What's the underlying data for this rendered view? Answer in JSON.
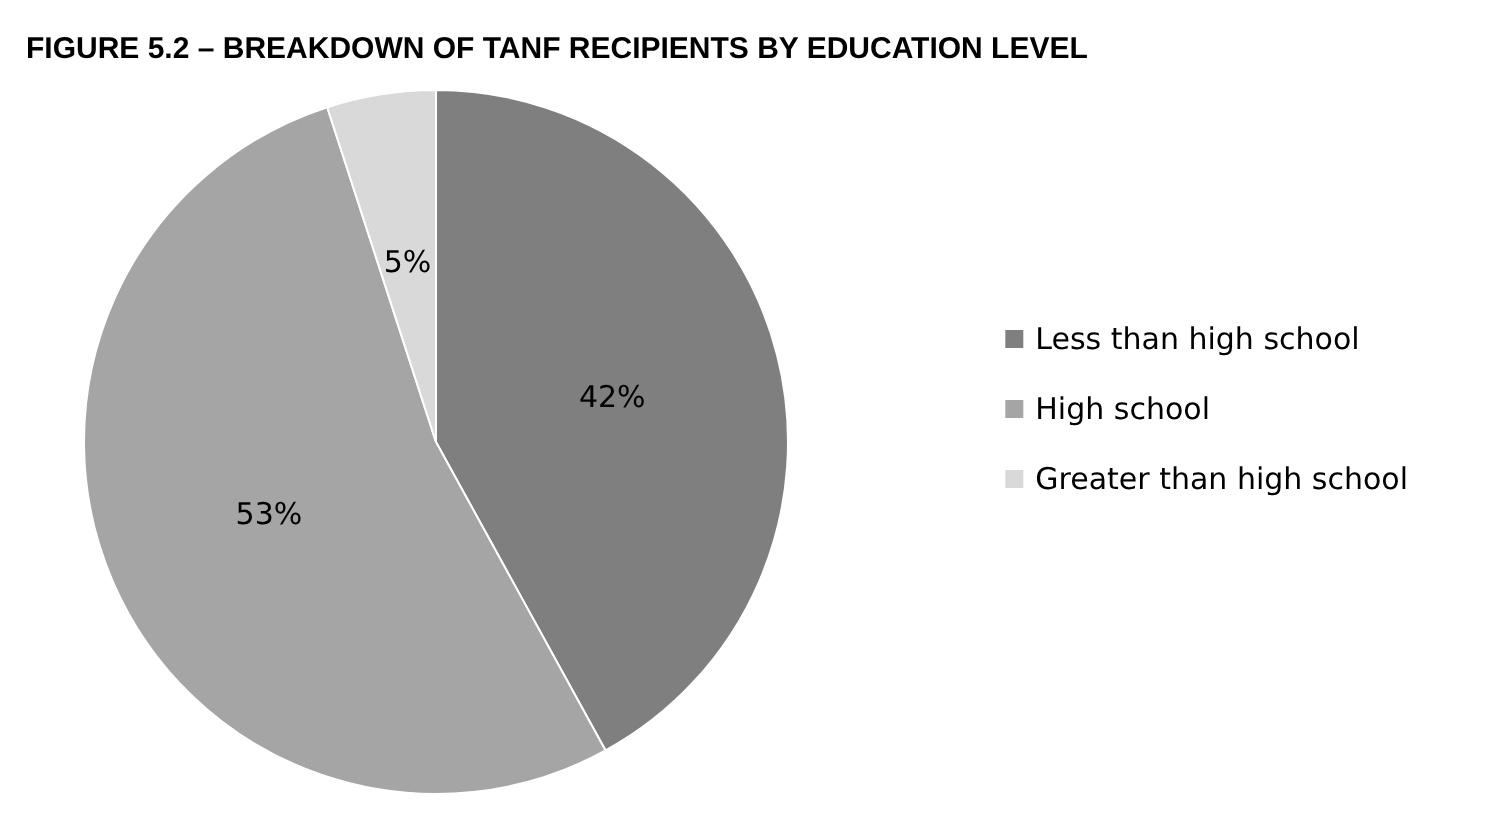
{
  "chart_data": {
    "type": "pie",
    "title": "FIGURE 5.2 – BREAKDOWN OF TANF RECIPIENTS BY EDUCATION LEVEL",
    "categories": [
      "Less than high school",
      "High school",
      "Greater than high school"
    ],
    "values": [
      42,
      53,
      5
    ],
    "colors": [
      "#7f7f7f",
      "#a5a5a5",
      "#d9d9d9"
    ],
    "value_labels": [
      "42%",
      "53%",
      "5%"
    ],
    "legend": "right"
  }
}
